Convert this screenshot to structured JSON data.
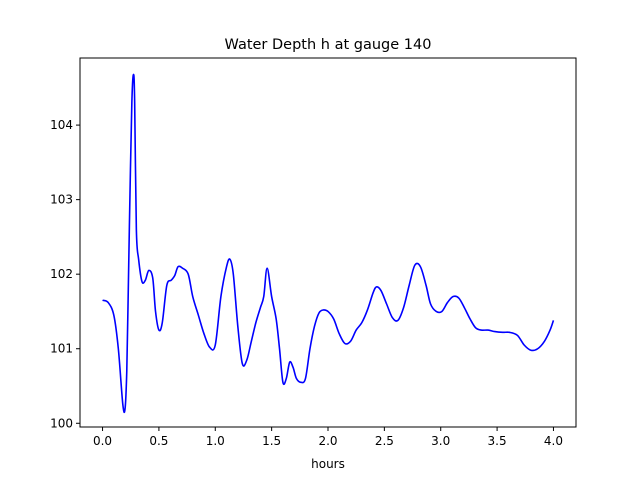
{
  "chart_data": {
    "type": "line",
    "title": "Water Depth h at gauge 140",
    "xlabel": "hours",
    "ylabel": "",
    "xlim": [
      -0.2,
      4.2
    ],
    "ylim": [
      99.95,
      104.9
    ],
    "xticks": [
      0.0,
      0.5,
      1.0,
      1.5,
      2.0,
      2.5,
      3.0,
      3.5,
      4.0
    ],
    "xtick_labels": [
      "0.0",
      "0.5",
      "1.0",
      "1.5",
      "2.0",
      "2.5",
      "3.0",
      "3.5",
      "4.0"
    ],
    "yticks": [
      100,
      101,
      102,
      103,
      104
    ],
    "ytick_labels": [
      "100",
      "101",
      "102",
      "103",
      "104"
    ],
    "grid": false,
    "series": [
      {
        "color": "#0000ff",
        "x": [
          0.0,
          0.05,
          0.1,
          0.14,
          0.18,
          0.2,
          0.215,
          0.225,
          0.24,
          0.26,
          0.275,
          0.285,
          0.3,
          0.32,
          0.35,
          0.38,
          0.41,
          0.445,
          0.47,
          0.5,
          0.53,
          0.57,
          0.61,
          0.64,
          0.67,
          0.71,
          0.76,
          0.8,
          0.85,
          0.9,
          0.95,
          1.0,
          1.05,
          1.1,
          1.13,
          1.16,
          1.2,
          1.24,
          1.28,
          1.32,
          1.36,
          1.4,
          1.43,
          1.46,
          1.5,
          1.54,
          1.57,
          1.6,
          1.63,
          1.66,
          1.69,
          1.72,
          1.76,
          1.8,
          1.84,
          1.88,
          1.92,
          1.96,
          2.0,
          2.05,
          2.1,
          2.15,
          2.2,
          2.25,
          2.3,
          2.35,
          2.4,
          2.43,
          2.47,
          2.52,
          2.57,
          2.62,
          2.67,
          2.72,
          2.77,
          2.82,
          2.87,
          2.91,
          2.96,
          3.01,
          3.06,
          3.11,
          3.16,
          3.21,
          3.26,
          3.31,
          3.36,
          3.42,
          3.48,
          3.55,
          3.61,
          3.68,
          3.74,
          3.8,
          3.86,
          3.92,
          3.97,
          4.0
        ],
        "y": [
          101.65,
          101.62,
          101.45,
          101.0,
          100.25,
          100.2,
          100.7,
          101.5,
          102.8,
          104.3,
          104.68,
          104.3,
          102.6,
          102.2,
          101.9,
          101.92,
          102.05,
          101.95,
          101.5,
          101.25,
          101.35,
          101.85,
          101.92,
          101.98,
          102.1,
          102.08,
          102.0,
          101.7,
          101.45,
          101.2,
          101.02,
          101.05,
          101.7,
          102.1,
          102.2,
          102.0,
          101.3,
          100.8,
          100.85,
          101.1,
          101.35,
          101.55,
          101.7,
          102.08,
          101.7,
          101.4,
          101.0,
          100.55,
          100.6,
          100.82,
          100.75,
          100.6,
          100.55,
          100.6,
          101.0,
          101.3,
          101.48,
          101.52,
          101.5,
          101.4,
          101.2,
          101.07,
          101.1,
          101.25,
          101.35,
          101.52,
          101.75,
          101.83,
          101.78,
          101.6,
          101.42,
          101.38,
          101.55,
          101.85,
          102.12,
          102.1,
          101.85,
          101.6,
          101.5,
          101.5,
          101.62,
          101.7,
          101.68,
          101.55,
          101.4,
          101.28,
          101.25,
          101.25,
          101.23,
          101.22,
          101.22,
          101.18,
          101.05,
          100.98,
          101.0,
          101.1,
          101.25,
          101.38
        ]
      }
    ]
  }
}
